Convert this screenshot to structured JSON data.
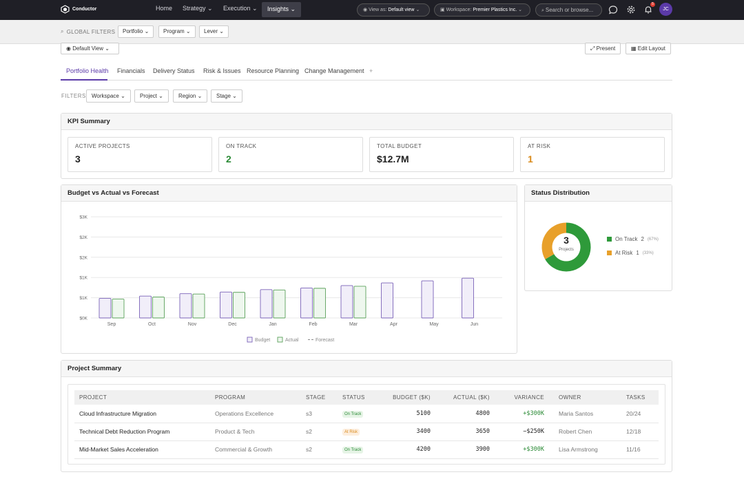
{
  "app": {
    "name": "Conductor"
  },
  "nav": {
    "items": [
      {
        "label": "Home"
      },
      {
        "label": "Strategy"
      },
      {
        "label": "Execution"
      },
      {
        "label": "Insights"
      }
    ]
  },
  "topbar": {
    "view_as_label": "View as:",
    "view_as_value": "Default view",
    "workspace_label": "Workspace:",
    "workspace_value": "Premier Plastics Inc.",
    "search_placeholder": "Search or browse...",
    "notifications_count": "5",
    "user_initials": "JC"
  },
  "global_filters": {
    "label": "GLOBAL FILTERS",
    "items": [
      "Portfolio",
      "Program",
      "Lever"
    ]
  },
  "toolbar": {
    "view": "Default View",
    "present": "Present",
    "edit_layout": "Edit Layout"
  },
  "tabs": [
    "Portfolio Health",
    "Financials",
    "Delivery Status",
    "Risk & Issues",
    "Resource Planning",
    "Change Management",
    "+"
  ],
  "filters": {
    "label": "FILTERS",
    "items": [
      "Workspace",
      "Project",
      "Region",
      "Stage"
    ]
  },
  "kpi": {
    "title": "KPI Summary",
    "cards": [
      {
        "label": "ACTIVE PROJECTS",
        "value": "3",
        "color": "#222222"
      },
      {
        "label": "ON TRACK",
        "value": "2",
        "color": "#2a8a35"
      },
      {
        "label": "TOTAL BUDGET",
        "value": "$12.7M",
        "color": "#222222"
      },
      {
        "label": "AT RISK",
        "value": "1",
        "color": "#d98a1a"
      }
    ]
  },
  "budget_chart": {
    "title": "Budget vs Actual vs Forecast"
  },
  "status_chart": {
    "title": "Status Distribution",
    "center_value": "3",
    "center_label": "Projects"
  },
  "chart_data": [
    {
      "type": "bar",
      "title": "Budget vs Actual vs Forecast",
      "categories": [
        "Sep",
        "Oct",
        "Nov",
        "Dec",
        "Jan",
        "Feb",
        "Mar",
        "Apr",
        "May",
        "Jun"
      ],
      "y_ticks": [
        "$0K",
        "$1K",
        "$1K",
        "$2K",
        "$2K",
        "$3K"
      ],
      "ylim": [
        0,
        3000
      ],
      "series": [
        {
          "name": "Budget",
          "color": "#7a62b8",
          "values": [
            580,
            650,
            720,
            770,
            840,
            890,
            960,
            1040,
            1100,
            1180
          ]
        },
        {
          "name": "Actual",
          "color": "#5aa05a",
          "values": [
            560,
            620,
            710,
            760,
            830,
            880,
            940,
            null,
            null,
            null
          ]
        },
        {
          "name": "Forecast",
          "color": "#888888",
          "values": [
            null,
            null,
            null,
            null,
            null,
            null,
            null,
            null,
            null,
            null
          ]
        }
      ],
      "legend": "bottom"
    },
    {
      "type": "pie",
      "title": "Status Distribution",
      "series": [
        {
          "name": "On Track",
          "value": 2,
          "pct": "(67%)",
          "color": "#2e9a3a"
        },
        {
          "name": "At Risk",
          "value": 1,
          "pct": "(33%)",
          "color": "#e8a02a"
        }
      ]
    }
  ],
  "projects": {
    "title": "Project Summary",
    "columns": [
      "PROJECT",
      "PROGRAM",
      "STAGE",
      "STATUS",
      "BUDGET ($K)",
      "ACTUAL ($K)",
      "VARIANCE",
      "OWNER",
      "TASKS"
    ],
    "rows": [
      {
        "project": "Cloud Infrastructure Migration",
        "program": "Operations Excellence",
        "stage": "s3",
        "status": "On Track",
        "budget": "5100",
        "actual": "4800",
        "variance": "+$300K",
        "owner": "Maria Santos",
        "tasks": "20/24"
      },
      {
        "project": "Technical Debt Reduction Program",
        "program": "Product & Tech",
        "stage": "s2",
        "status": "At Risk",
        "budget": "3400",
        "actual": "3650",
        "variance": "−$250K",
        "owner": "Robert Chen",
        "tasks": "12/18"
      },
      {
        "project": "Mid-Market Sales Acceleration",
        "program": "Commercial & Growth",
        "stage": "s2",
        "status": "On Track",
        "budget": "4200",
        "actual": "3900",
        "variance": "+$300K",
        "owner": "Lisa Armstrong",
        "tasks": "11/16"
      }
    ]
  }
}
